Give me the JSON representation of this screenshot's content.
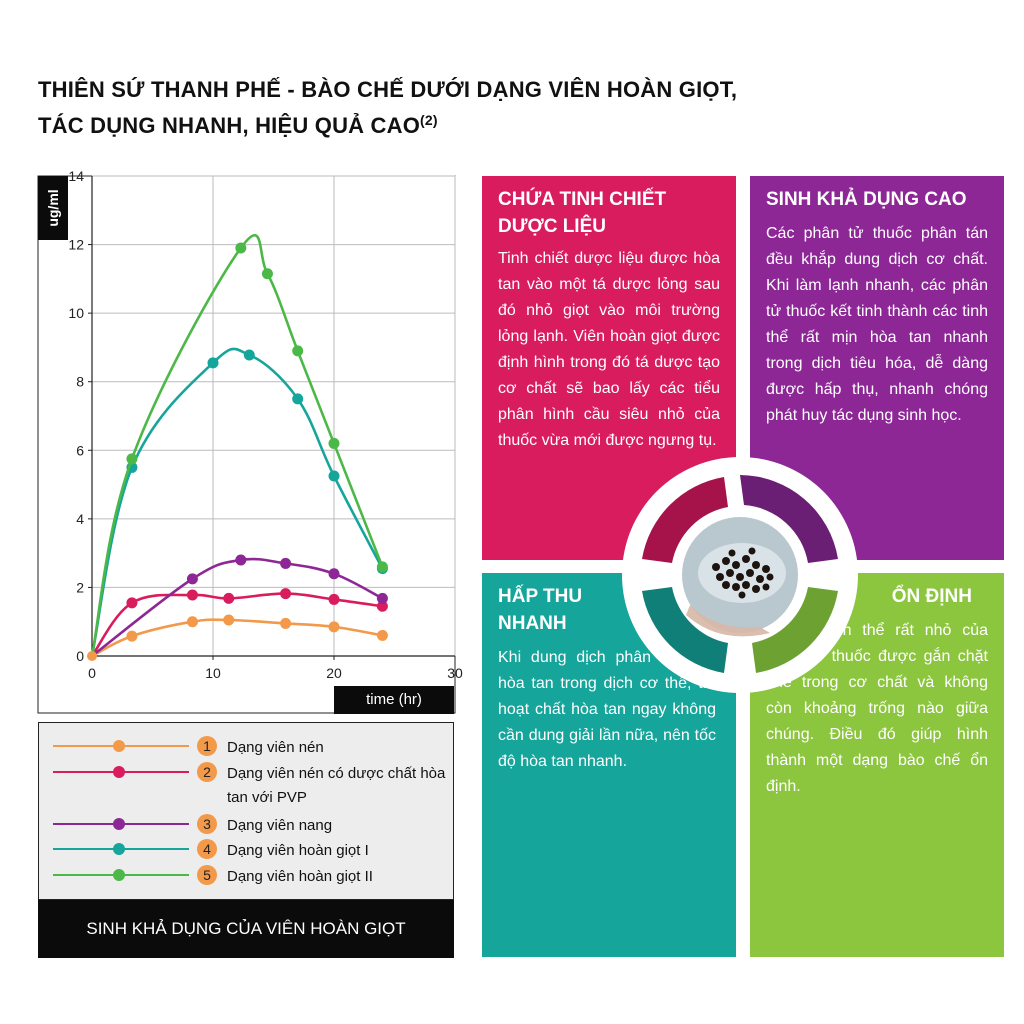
{
  "header": {
    "title_line1": "THIÊN SỨ THANH PHẾ - BÀO CHẾ DƯỚI DẠNG VIÊN HOÀN GIỌT,",
    "title_line2": "TÁC DỤNG NHANH, HIỆU QUẢ CAO",
    "title_sup": "(2)"
  },
  "chart_data": {
    "type": "line",
    "xlabel": "time (hr)",
    "ylabel": "ug/ml",
    "xlim": [
      0,
      30
    ],
    "ylim": [
      0,
      14
    ],
    "xticks": [
      0,
      10,
      20,
      30
    ],
    "yticks": [
      0,
      2,
      4,
      6,
      8,
      10,
      12,
      14
    ],
    "grid": true,
    "series": [
      {
        "name": "Dạng viên nén",
        "number": "1",
        "color": "#f39a4a",
        "x": [
          0,
          3.3,
          8.3,
          11.3,
          16.0,
          20.0,
          24.0
        ],
        "y": [
          0,
          0.58,
          1.0,
          1.05,
          0.95,
          0.85,
          0.6
        ]
      },
      {
        "name": "Dạng viên nén có dược chất hòa tan với PVP",
        "number": "2",
        "color": "#d81c5e",
        "x": [
          0,
          3.3,
          8.3,
          11.3,
          16.0,
          20.0,
          24.0
        ],
        "y": [
          0,
          1.55,
          1.78,
          1.68,
          1.82,
          1.65,
          1.45
        ]
      },
      {
        "name": "Dạng viên nang",
        "number": "3",
        "color": "#8d2796",
        "x": [
          0,
          8.3,
          12.3,
          16.0,
          20.0,
          24.0
        ],
        "y": [
          0,
          2.25,
          2.8,
          2.7,
          2.4,
          1.68
        ]
      },
      {
        "name": "Dạng viên hoàn giọt I",
        "number": "4",
        "color": "#16a59b",
        "x": [
          0,
          3.3,
          10.0,
          13.0,
          17.0,
          20.0,
          24.0
        ],
        "y": [
          0,
          5.5,
          8.55,
          8.78,
          7.5,
          5.25,
          2.55
        ]
      },
      {
        "name": "Dạng viên hoàn giọt II",
        "number": "5",
        "color": "#4cb848",
        "x": [
          0,
          3.3,
          12.3,
          14.5,
          17.0,
          20.0,
          24.0
        ],
        "y": [
          0,
          5.75,
          11.9,
          11.15,
          8.9,
          6.2,
          2.6
        ]
      }
    ]
  },
  "legend": {
    "items": [
      {
        "number": "1",
        "text": "Dạng viên nén"
      },
      {
        "number": "2",
        "text": "Dạng viên nén có dược chất hòa tan với PVP"
      },
      {
        "number": "3",
        "text": "Dạng viên nang"
      },
      {
        "number": "4",
        "text": "Dạng viên hoàn giọt I"
      },
      {
        "number": "5",
        "text": "Dạng viên hoàn giọt II"
      }
    ]
  },
  "chart_caption": "SINH KHẢ DỤNG CỦA VIÊN HOÀN GIỌT",
  "panels": {
    "p1": {
      "heading_line1": "CHỨA TINH CHIẾT",
      "heading_line2": "DƯỢC LIỆU",
      "body": "Tinh chiết dược liệu được hòa tan vào một tá dược lỏng sau đó nhỏ giọt vào môi trường lỏng lạnh. Viên hoàn giọt được định hình trong đó tá dược tạo cơ chất sẽ bao lấy các tiểu phân hình cầu siêu nhỏ của thuốc vừa mới được ngưng tụ.",
      "color": "#d81c5e"
    },
    "p2": {
      "heading": "SINH KHẢ DỤNG CAO",
      "body": "Các phân tử thuốc phân tán đều khắp dung dịch cơ chất. Khi làm lạnh nhanh, các phân tử thuốc kết tinh thành các tinh thể rất mịn hòa tan nhanh trong dịch tiêu hóa, dễ dàng được hấp thụ, nhanh chóng phát huy tác dụng sinh học.",
      "color": "#8d2796"
    },
    "p3": {
      "heading_line1": "HẤP THU",
      "heading_line2": "NHANH",
      "body": "Khi dung dịch phân tán rắn hòa tan trong dịch cơ thể, thì hoạt chất hòa tan ngay không cần dung giải lần nữa, nên tốc độ hòa tan nhanh.",
      "color": "#16a59b"
    },
    "p4": {
      "heading": "ỔN ĐỊNH",
      "body": "Những tinh thể rất nhỏ của phân tử thuốc được gắn chặt chẽ trong cơ chất và không còn khoảng trống nào giữa chúng. Điều đó giúp hình thành một dạng bào chế ổn định.",
      "color": "#8cc63f"
    }
  },
  "icons": {
    "center_image": "pill-dish-photo"
  }
}
